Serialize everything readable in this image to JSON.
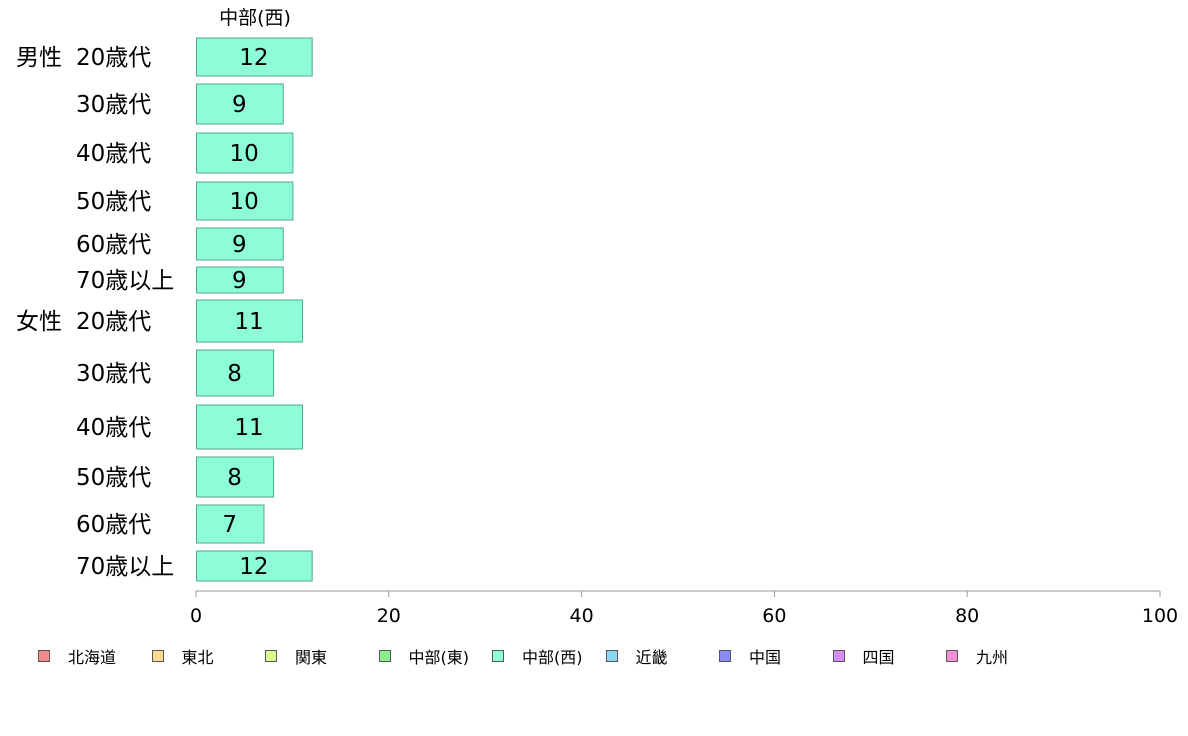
{
  "chart_data": {
    "type": "bar",
    "orientation": "horizontal",
    "panel_title": "中部(西)",
    "groups": [
      {
        "label": "男性",
        "categories": [
          "20歳代",
          "30歳代",
          "40歳代",
          "50歳代",
          "60歳代",
          "70歳以上"
        ],
        "values": [
          12,
          9,
          10,
          10,
          9,
          9
        ]
      },
      {
        "label": "女性",
        "categories": [
          "20歳代",
          "30歳代",
          "40歳代",
          "50歳代",
          "60歳代",
          "70歳以上"
        ],
        "values": [
          11,
          8,
          11,
          8,
          7,
          12
        ]
      }
    ],
    "xlim": [
      0,
      100
    ],
    "x_ticks": [
      0,
      20,
      40,
      60,
      80,
      100
    ],
    "bar_color": "#8cfcd9",
    "bar_border": "#55a88a",
    "grid": false,
    "legend": {
      "placement": "bottom",
      "items": [
        {
          "label": "北海道",
          "color": "#f08c8c"
        },
        {
          "label": "東北",
          "color": "#f8da90"
        },
        {
          "label": "関東",
          "color": "#dcf890"
        },
        {
          "label": "中部(東)",
          "color": "#8cf08c"
        },
        {
          "label": "中部(西)",
          "color": "#8cfcd9"
        },
        {
          "label": "近畿",
          "color": "#8cd6f4"
        },
        {
          "label": "中国",
          "color": "#8c8cf0"
        },
        {
          "label": "四国",
          "color": "#d68cf4"
        },
        {
          "label": "九州",
          "color": "#f48cdc"
        }
      ]
    }
  }
}
